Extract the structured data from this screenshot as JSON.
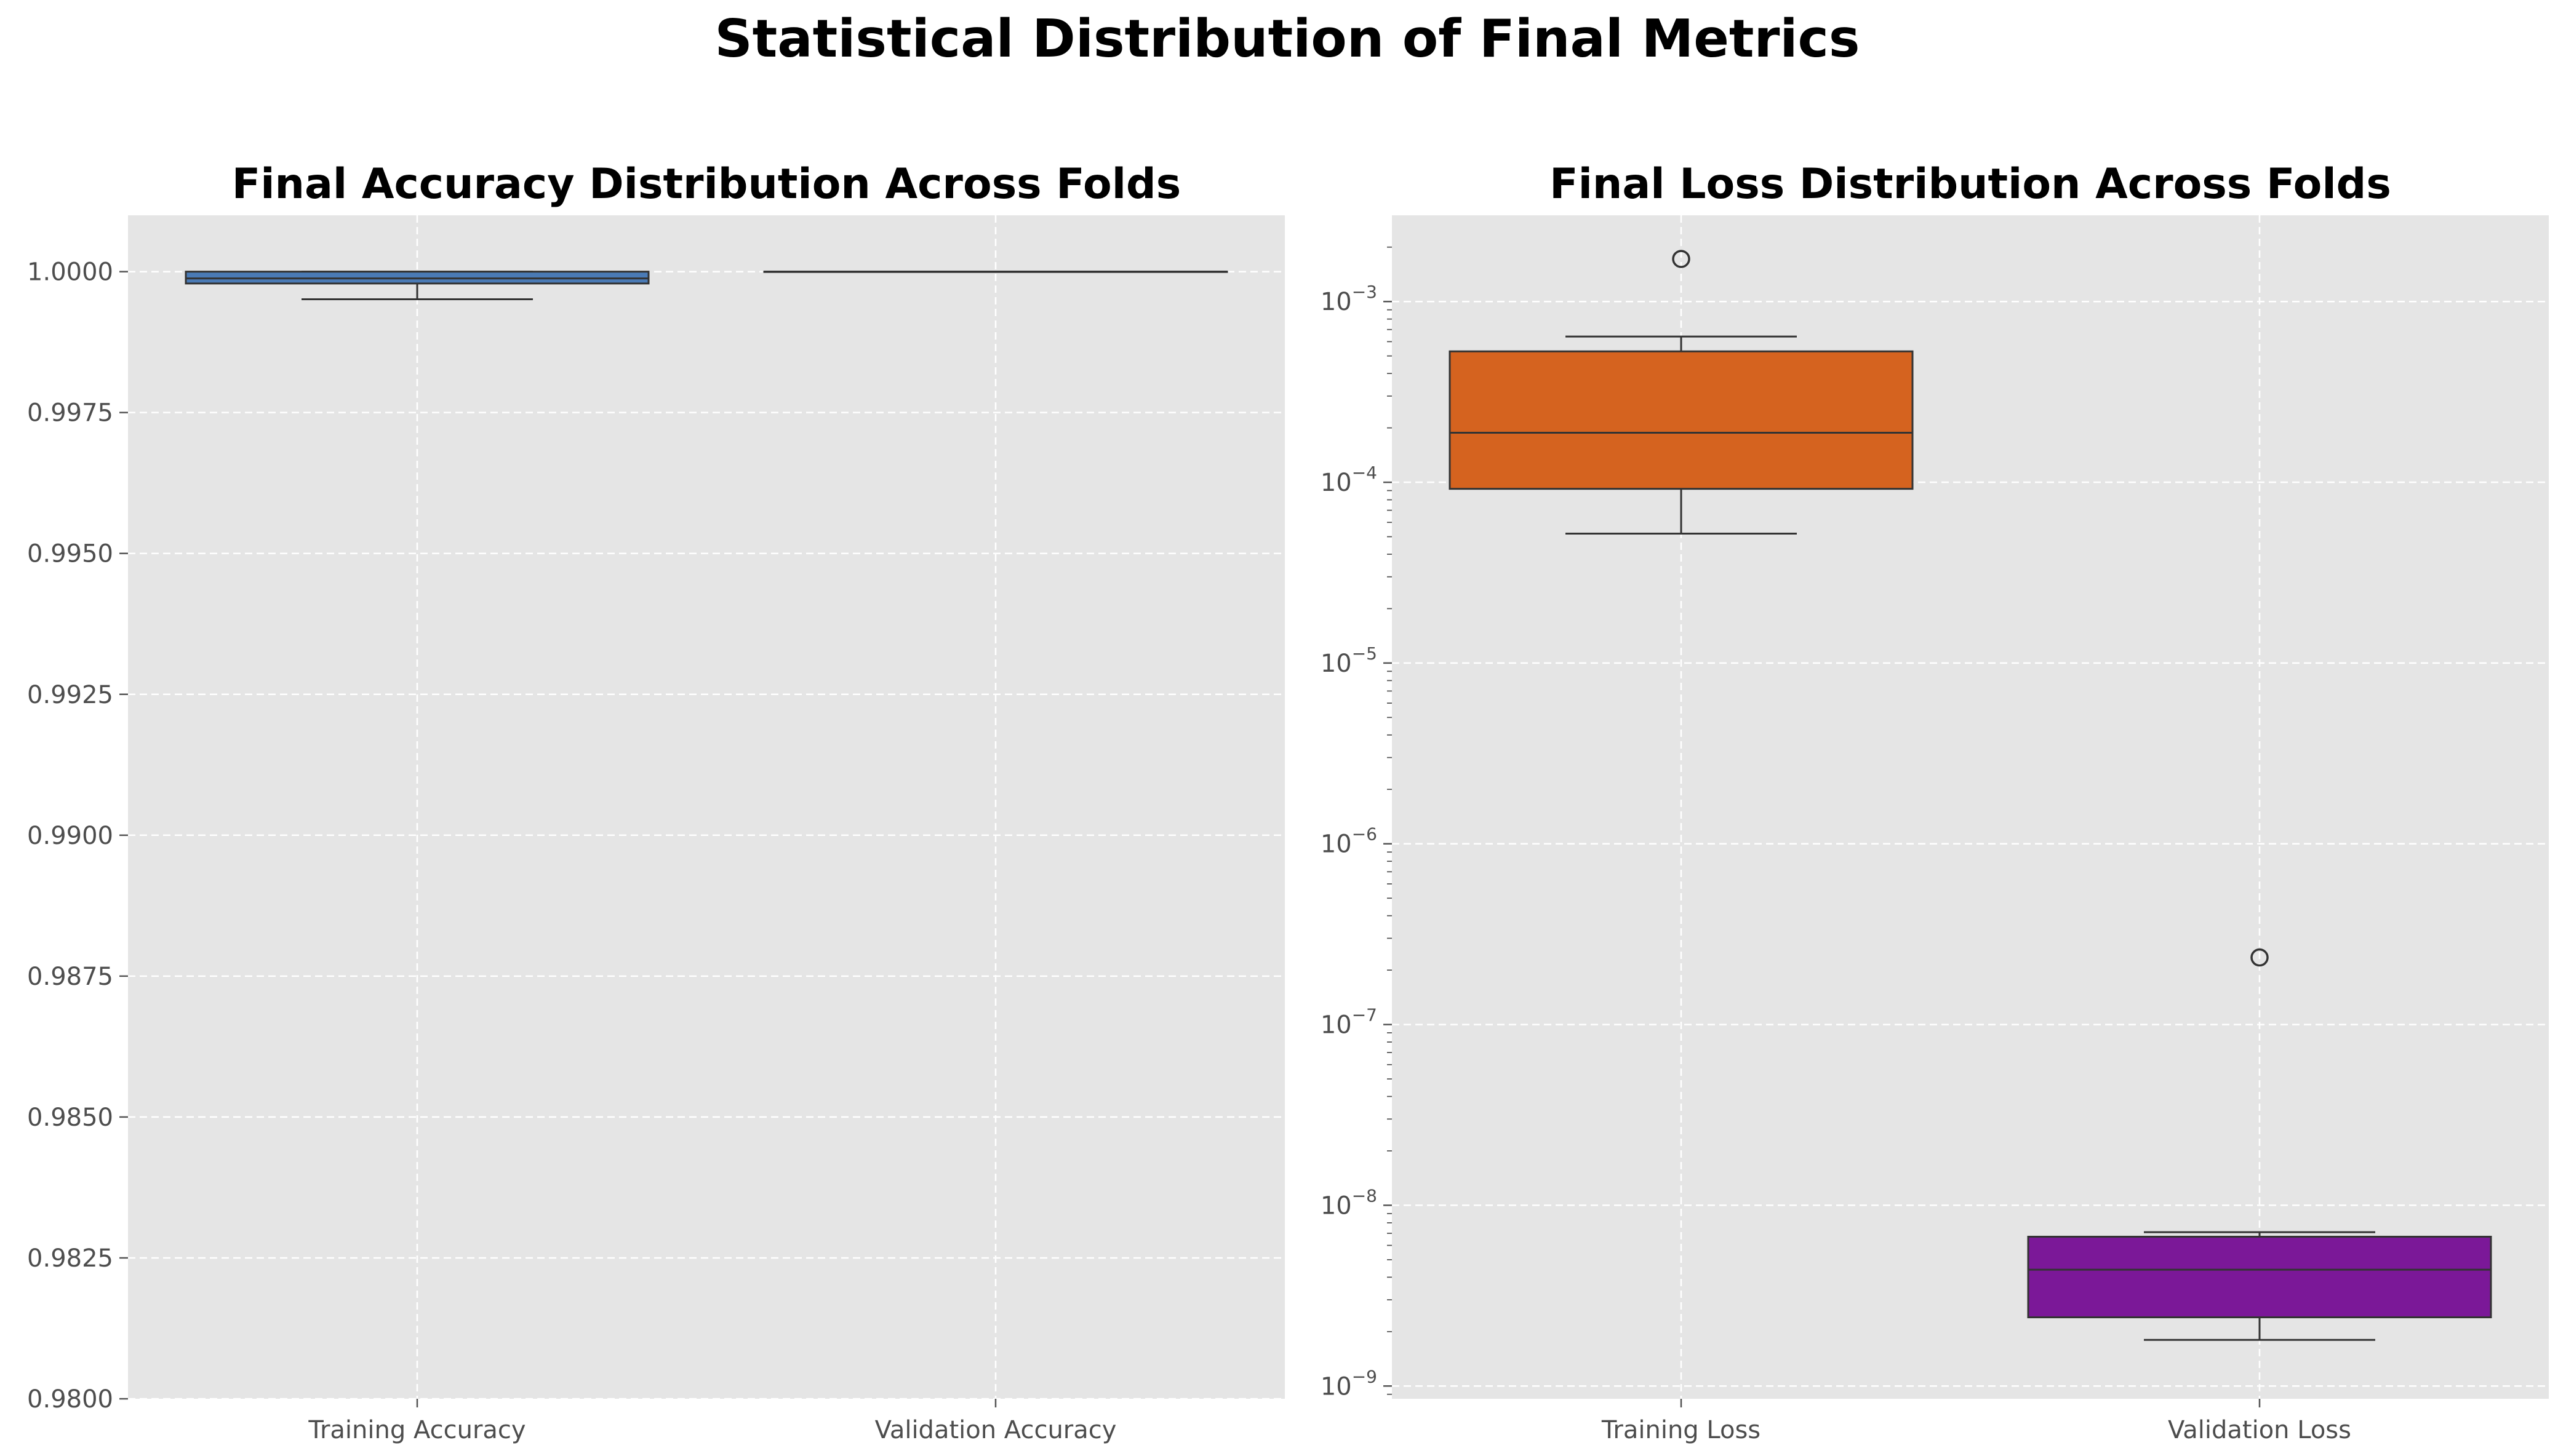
{
  "figure": {
    "title": "Statistical Distribution of Final Metrics"
  },
  "chart_data": [
    {
      "type": "box",
      "title": "Final Accuracy Distribution Across Folds",
      "xlabel": "",
      "ylabel": "",
      "ylim": [
        0.98,
        1.001
      ],
      "yscale": "linear",
      "yticks": [
        0.98,
        0.9825,
        0.985,
        0.9875,
        0.99,
        0.9925,
        0.995,
        0.9975,
        1.0
      ],
      "ytick_labels": [
        "0.9800",
        "0.9825",
        "0.9850",
        "0.9875",
        "0.9900",
        "0.9925",
        "0.9950",
        "0.9975",
        "1.0000"
      ],
      "grid": true,
      "categories": [
        "Training Accuracy",
        "Validation Accuracy"
      ],
      "boxes": [
        {
          "label": "Training Accuracy",
          "color": "#4a7ab5",
          "whisker_low": 0.99951,
          "q1": 0.99979,
          "median": 0.99988,
          "q3": 1.0,
          "whisker_high": 1.0,
          "outliers": []
        },
        {
          "label": "Validation Accuracy",
          "color": "#4a7ab5",
          "whisker_low": 1.0,
          "q1": 1.0,
          "median": 1.0,
          "q3": 1.0,
          "whisker_high": 1.0,
          "outliers": []
        }
      ]
    },
    {
      "type": "box",
      "title": "Final Loss Distribution Across Folds",
      "xlabel": "",
      "ylabel": "",
      "ylim": [
        8.5e-10,
        0.003
      ],
      "yscale": "log",
      "ytick_exponents": [
        -9,
        -8,
        -7,
        -6,
        -5,
        -4,
        -3
      ],
      "ytick_base": "10",
      "grid": true,
      "categories": [
        "Training Loss",
        "Validation Loss"
      ],
      "boxes": [
        {
          "label": "Training Loss",
          "color": "#d5631f",
          "whisker_low": 5.2e-05,
          "q1": 9.2e-05,
          "median": 0.000188,
          "q3": 0.00053,
          "whisker_high": 0.00064,
          "outliers": [
            0.00172
          ]
        },
        {
          "label": "Validation Loss",
          "color": "#7b1898",
          "whisker_low": 1.8e-09,
          "q1": 2.4e-09,
          "median": 4.4e-09,
          "q3": 6.7e-09,
          "whisker_high": 7.1e-09,
          "outliers": [
            2.35e-07
          ]
        }
      ]
    }
  ]
}
